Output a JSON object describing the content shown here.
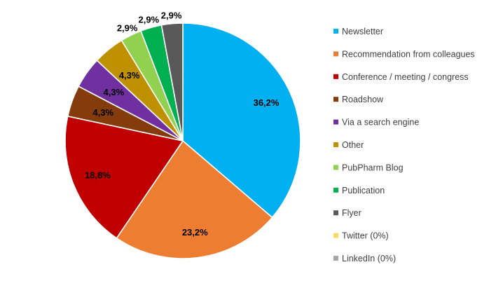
{
  "chart_data": {
    "type": "pie",
    "title": "",
    "legend_position": "right",
    "slices": [
      {
        "name": "Newsletter",
        "value": 36.2,
        "label": "36,2%",
        "color": "#00B0F0"
      },
      {
        "name": "Recommendation from colleagues",
        "value": 23.2,
        "label": "23,2%",
        "color": "#ED7D31"
      },
      {
        "name": "Conference / meeting / congress",
        "value": 18.8,
        "label": "18,8%",
        "color": "#C00000"
      },
      {
        "name": "Roadshow",
        "value": 4.3,
        "label": "4,3%",
        "color": "#843C0C"
      },
      {
        "name": "Via a search engine",
        "value": 4.3,
        "label": "4,3%",
        "color": "#7030A0"
      },
      {
        "name": "Other",
        "value": 4.3,
        "label": "4,3%",
        "color": "#BF9000"
      },
      {
        "name": "PubPharm Blog",
        "value": 2.9,
        "label": "2,9%",
        "color": "#92D050"
      },
      {
        "name": "Publication",
        "value": 2.9,
        "label": "2,9%",
        "color": "#00B050"
      },
      {
        "name": "Flyer",
        "value": 2.9,
        "label": "2,9%",
        "color": "#595959"
      },
      {
        "name": "Twitter  (0%)",
        "value": 0,
        "label": "",
        "color": "#FFD966"
      },
      {
        "name": "LinkedIn (0%)",
        "value": 0,
        "label": "",
        "color": "#A6A6A6"
      }
    ]
  }
}
